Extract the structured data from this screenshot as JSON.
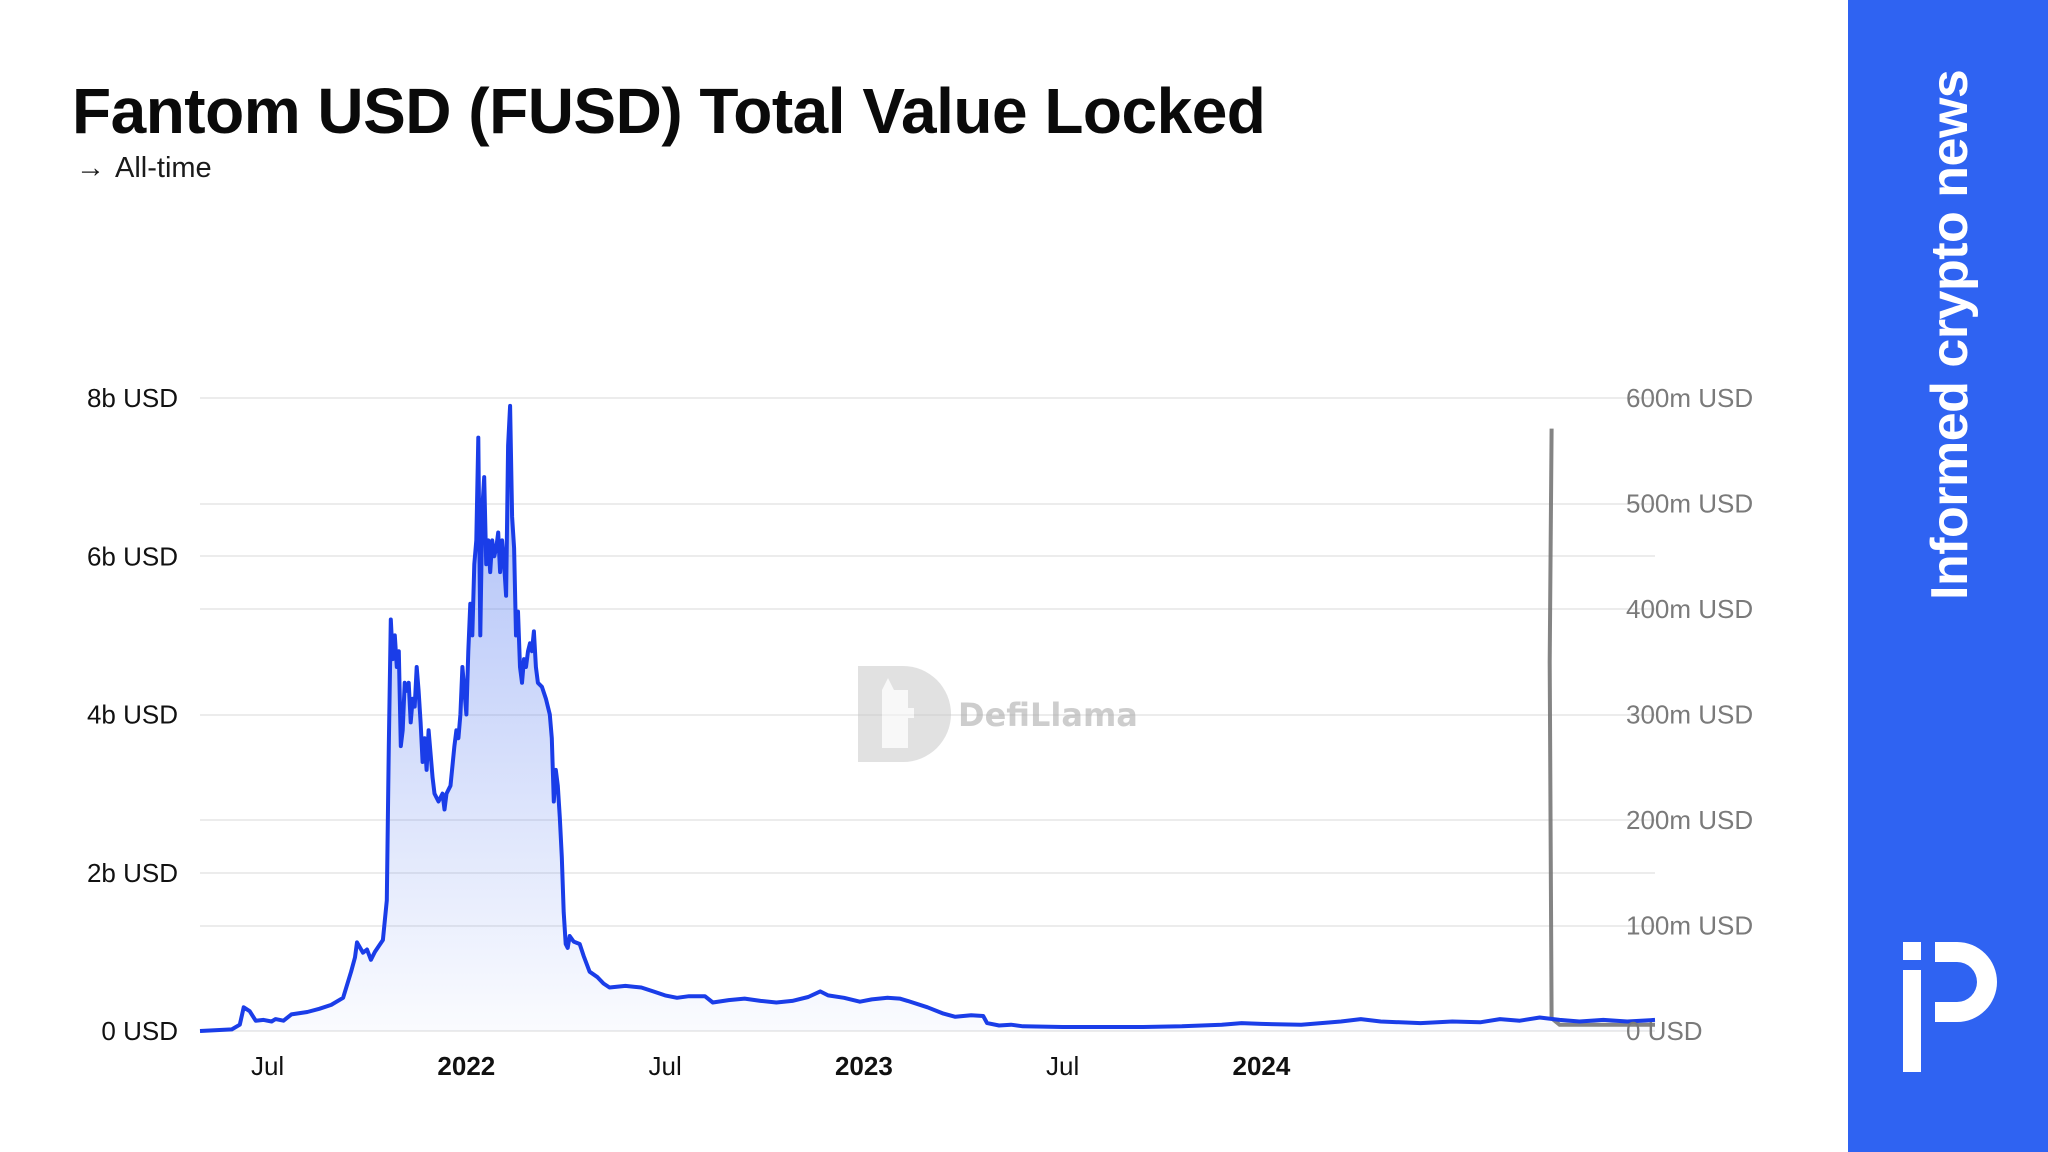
{
  "header": {
    "title": "Fantom USD (FUSD) Total Value Locked",
    "subtitle": "All-time",
    "subtitle_icon": "arrow-right-icon"
  },
  "watermark": {
    "text": "DefiLlama",
    "icon": "llama-logo-icon"
  },
  "sidebar": {
    "tagline": "Informed crypto news",
    "logo_icon": "brand-logo-icon",
    "background": "#2f63f2"
  },
  "colors": {
    "line": "#1a3de8",
    "area_top": "#5f82f0",
    "secondary_line": "#777777",
    "grid": "#e6e6e6"
  },
  "chart_data": {
    "type": "line",
    "x_ticks": [
      {
        "label": "Jul",
        "x": 2021.5,
        "bold": false
      },
      {
        "label": "2022",
        "x": 2022.0,
        "bold": true
      },
      {
        "label": "Jul",
        "x": 2022.5,
        "bold": false
      },
      {
        "label": "2023",
        "x": 2023.0,
        "bold": true
      },
      {
        "label": "Jul",
        "x": 2023.5,
        "bold": false
      },
      {
        "label": "2024",
        "x": 2024.0,
        "bold": true
      }
    ],
    "xlim": [
      2021.33,
      2024.99
    ],
    "y_left": {
      "ticks": [
        "0 USD",
        "2b USD",
        "4b USD",
        "6b USD",
        "8b USD"
      ],
      "values": [
        0,
        2,
        4,
        6,
        8
      ],
      "lim": [
        0,
        8
      ],
      "unit": "billion USD"
    },
    "y_right": {
      "ticks": [
        "0 USD",
        "100m USD",
        "200m USD",
        "300m USD",
        "400m USD",
        "500m USD",
        "600m USD"
      ],
      "values": [
        0,
        100,
        200,
        300,
        400,
        500,
        600
      ],
      "lim": [
        0,
        600
      ],
      "unit": "million USD"
    },
    "grid": true,
    "series": [
      {
        "axis": "left",
        "points": [
          [
            2021.33,
            0
          ],
          [
            2021.41,
            0.02
          ],
          [
            2021.43,
            0.08
          ],
          [
            2021.44,
            0.3
          ],
          [
            2021.455,
            0.25
          ],
          [
            2021.47,
            0.13
          ],
          [
            2021.49,
            0.14
          ],
          [
            2021.51,
            0.12
          ],
          [
            2021.52,
            0.15
          ],
          [
            2021.54,
            0.13
          ],
          [
            2021.56,
            0.21
          ],
          [
            2021.6,
            0.24
          ],
          [
            2021.63,
            0.28
          ],
          [
            2021.66,
            0.33
          ],
          [
            2021.69,
            0.42
          ],
          [
            2021.71,
            0.75
          ],
          [
            2021.72,
            0.93
          ],
          [
            2021.725,
            1.12
          ],
          [
            2021.74,
            0.99
          ],
          [
            2021.75,
            1.03
          ],
          [
            2021.76,
            0.9
          ],
          [
            2021.77,
            1.0
          ],
          [
            2021.79,
            1.15
          ],
          [
            2021.8,
            1.65
          ],
          [
            2021.805,
            3.6
          ],
          [
            2021.81,
            5.2
          ],
          [
            2021.815,
            4.7
          ],
          [
            2021.82,
            5.0
          ],
          [
            2021.825,
            4.6
          ],
          [
            2021.83,
            4.8
          ],
          [
            2021.835,
            3.6
          ],
          [
            2021.84,
            3.8
          ],
          [
            2021.845,
            4.4
          ],
          [
            2021.85,
            4.3
          ],
          [
            2021.855,
            4.4
          ],
          [
            2021.86,
            3.9
          ],
          [
            2021.865,
            4.2
          ],
          [
            2021.87,
            4.1
          ],
          [
            2021.875,
            4.6
          ],
          [
            2021.88,
            4.3
          ],
          [
            2021.885,
            3.9
          ],
          [
            2021.89,
            3.4
          ],
          [
            2021.895,
            3.7
          ],
          [
            2021.9,
            3.3
          ],
          [
            2021.905,
            3.8
          ],
          [
            2021.91,
            3.5
          ],
          [
            2021.915,
            3.2
          ],
          [
            2021.92,
            3.0
          ],
          [
            2021.93,
            2.9
          ],
          [
            2021.94,
            3.0
          ],
          [
            2021.945,
            2.8
          ],
          [
            2021.95,
            3.0
          ],
          [
            2021.96,
            3.1
          ],
          [
            2021.97,
            3.6
          ],
          [
            2021.975,
            3.8
          ],
          [
            2021.98,
            3.7
          ],
          [
            2021.985,
            4.0
          ],
          [
            2021.99,
            4.6
          ],
          [
            2021.995,
            4.3
          ],
          [
            2022.0,
            4.0
          ],
          [
            2022.005,
            4.8
          ],
          [
            2022.01,
            5.4
          ],
          [
            2022.015,
            5.0
          ],
          [
            2022.02,
            5.9
          ],
          [
            2022.025,
            6.2
          ],
          [
            2022.03,
            7.5
          ],
          [
            2022.035,
            5.0
          ],
          [
            2022.04,
            6.6
          ],
          [
            2022.045,
            7.0
          ],
          [
            2022.05,
            5.9
          ],
          [
            2022.055,
            6.2
          ],
          [
            2022.06,
            5.8
          ],
          [
            2022.065,
            6.2
          ],
          [
            2022.07,
            6.0
          ],
          [
            2022.075,
            6.1
          ],
          [
            2022.08,
            6.3
          ],
          [
            2022.085,
            5.8
          ],
          [
            2022.09,
            6.2
          ],
          [
            2022.095,
            5.9
          ],
          [
            2022.1,
            5.5
          ],
          [
            2022.105,
            7.4
          ],
          [
            2022.11,
            7.9
          ],
          [
            2022.115,
            6.5
          ],
          [
            2022.12,
            6.1
          ],
          [
            2022.125,
            5.0
          ],
          [
            2022.13,
            5.3
          ],
          [
            2022.135,
            4.6
          ],
          [
            2022.14,
            4.4
          ],
          [
            2022.145,
            4.7
          ],
          [
            2022.15,
            4.6
          ],
          [
            2022.155,
            4.8
          ],
          [
            2022.16,
            4.9
          ],
          [
            2022.165,
            4.8
          ],
          [
            2022.17,
            5.05
          ],
          [
            2022.175,
            4.6
          ],
          [
            2022.18,
            4.4
          ],
          [
            2022.19,
            4.35
          ],
          [
            2022.2,
            4.2
          ],
          [
            2022.21,
            4.0
          ],
          [
            2022.215,
            3.7
          ],
          [
            2022.22,
            2.9
          ],
          [
            2022.225,
            3.3
          ],
          [
            2022.23,
            3.1
          ],
          [
            2022.235,
            2.7
          ],
          [
            2022.24,
            2.2
          ],
          [
            2022.245,
            1.5
          ],
          [
            2022.25,
            1.1
          ],
          [
            2022.255,
            1.05
          ],
          [
            2022.26,
            1.2
          ],
          [
            2022.27,
            1.13
          ],
          [
            2022.285,
            1.1
          ],
          [
            2022.295,
            0.95
          ],
          [
            2022.31,
            0.75
          ],
          [
            2022.33,
            0.68
          ],
          [
            2022.345,
            0.6
          ],
          [
            2022.36,
            0.55
          ],
          [
            2022.4,
            0.57
          ],
          [
            2022.44,
            0.55
          ],
          [
            2022.47,
            0.5
          ],
          [
            2022.5,
            0.45
          ],
          [
            2022.53,
            0.42
          ],
          [
            2022.56,
            0.44
          ],
          [
            2022.6,
            0.44
          ],
          [
            2022.62,
            0.36
          ],
          [
            2022.66,
            0.39
          ],
          [
            2022.7,
            0.41
          ],
          [
            2022.74,
            0.38
          ],
          [
            2022.78,
            0.36
          ],
          [
            2022.82,
            0.38
          ],
          [
            2022.86,
            0.43
          ],
          [
            2022.89,
            0.5
          ],
          [
            2022.91,
            0.45
          ],
          [
            2022.95,
            0.42
          ],
          [
            2022.99,
            0.37
          ],
          [
            2023.02,
            0.4
          ],
          [
            2023.06,
            0.42
          ],
          [
            2023.09,
            0.41
          ],
          [
            2023.11,
            0.38
          ],
          [
            2023.16,
            0.3
          ],
          [
            2023.2,
            0.22
          ],
          [
            2023.23,
            0.18
          ],
          [
            2023.27,
            0.2
          ],
          [
            2023.3,
            0.19
          ],
          [
            2023.31,
            0.1
          ],
          [
            2023.34,
            0.07
          ],
          [
            2023.37,
            0.08
          ],
          [
            2023.4,
            0.06
          ],
          [
            2023.5,
            0.05
          ],
          [
            2023.6,
            0.05
          ],
          [
            2023.7,
            0.05
          ],
          [
            2023.8,
            0.06
          ],
          [
            2023.9,
            0.08
          ],
          [
            2023.95,
            0.1
          ],
          [
            2024.0,
            0.09
          ],
          [
            2024.1,
            0.08
          ],
          [
            2024.2,
            0.12
          ],
          [
            2024.25,
            0.15
          ],
          [
            2024.3,
            0.12
          ],
          [
            2024.4,
            0.1
          ],
          [
            2024.48,
            0.12
          ],
          [
            2024.55,
            0.11
          ],
          [
            2024.6,
            0.15
          ],
          [
            2024.65,
            0.13
          ],
          [
            2024.7,
            0.17
          ],
          [
            2024.75,
            0.14
          ],
          [
            2024.8,
            0.12
          ],
          [
            2024.86,
            0.14
          ],
          [
            2024.92,
            0.12
          ],
          [
            2024.99,
            0.14
          ]
        ]
      },
      {
        "axis": "right",
        "points": [
          [
            2024.73,
            571
          ],
          [
            2024.725,
            350
          ],
          [
            2024.73,
            12
          ],
          [
            2024.75,
            6
          ],
          [
            2024.99,
            6
          ]
        ]
      }
    ]
  }
}
